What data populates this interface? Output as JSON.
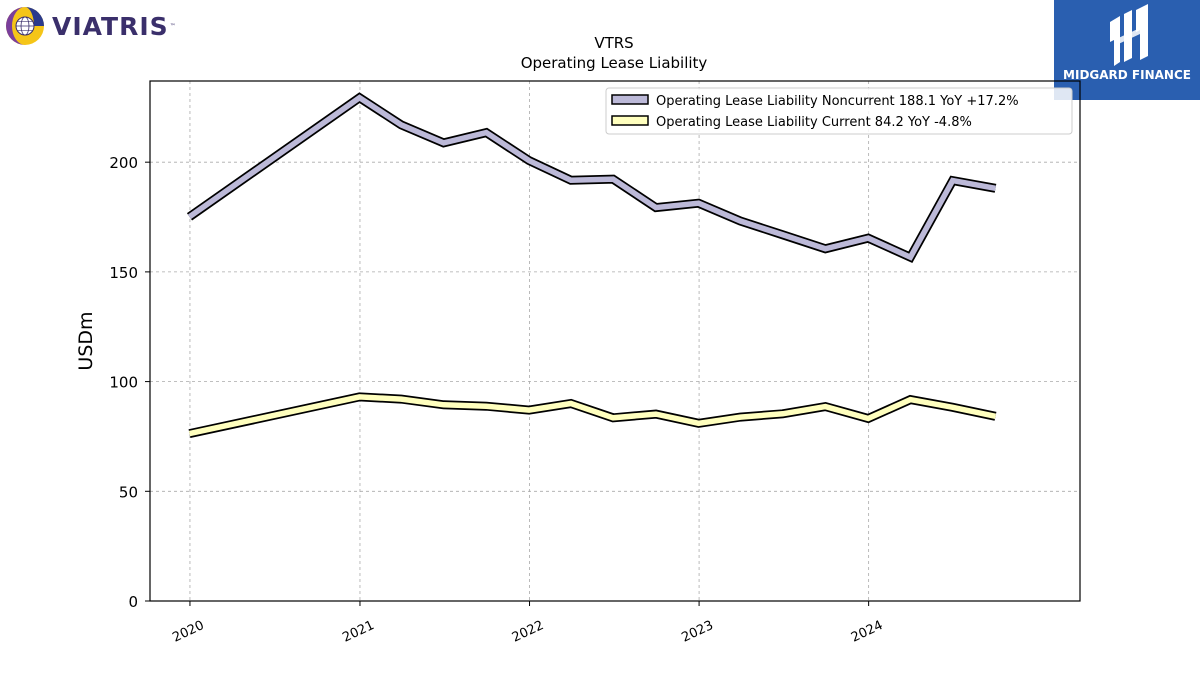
{
  "brand": {
    "left_logo_text": "VIATRIS",
    "left_logo_tm": "™",
    "right_logo_text": "MIDGARD FINANCE",
    "right_logo_color": "#2a5fb0"
  },
  "chart_data": {
    "type": "line",
    "title": "VTRS",
    "subtitle": "Operating Lease Liability",
    "ylabel": "USDm",
    "xlabel": "",
    "ylim": [
      0,
      237
    ],
    "yticks": [
      0,
      50,
      100,
      150,
      200
    ],
    "xlim": [
      "2019-10-07",
      "2025-03-31"
    ],
    "xticks": [
      "2020",
      "2021",
      "2022",
      "2023",
      "2024"
    ],
    "grid": true,
    "legend_position": "top-right",
    "x": [
      "2019-12-31",
      "2020-12-31",
      "2021-03-31",
      "2021-06-30",
      "2021-09-30",
      "2021-12-31",
      "2022-03-31",
      "2022-06-30",
      "2022-09-30",
      "2022-12-31",
      "2023-03-31",
      "2023-06-30",
      "2023-09-30",
      "2023-12-31",
      "2024-03-31",
      "2024-06-30",
      "2024-09-30"
    ],
    "series": [
      {
        "name": "Operating Lease Liability Noncurrent",
        "legend": "Operating Lease Liability Noncurrent  188.1 YoY +17.2%",
        "color": "#bcb9d8",
        "values": [
          175.1,
          229.4,
          217.0,
          208.8,
          213.5,
          200.7,
          191.8,
          192.3,
          179.3,
          181.3,
          173.2,
          166.9,
          160.5,
          165.4,
          156.7,
          191.6,
          188.1
        ]
      },
      {
        "name": "Operating Lease Liability Current",
        "legend": "Operating Lease Liability Current  84.2 YoY -4.8%",
        "color": "#ffffbe",
        "values": [
          76.3,
          93.0,
          92.0,
          89.4,
          88.8,
          87.0,
          90.0,
          83.5,
          85.2,
          81.0,
          83.8,
          85.3,
          88.6,
          83.2,
          91.8,
          88.3,
          84.2
        ]
      }
    ]
  }
}
